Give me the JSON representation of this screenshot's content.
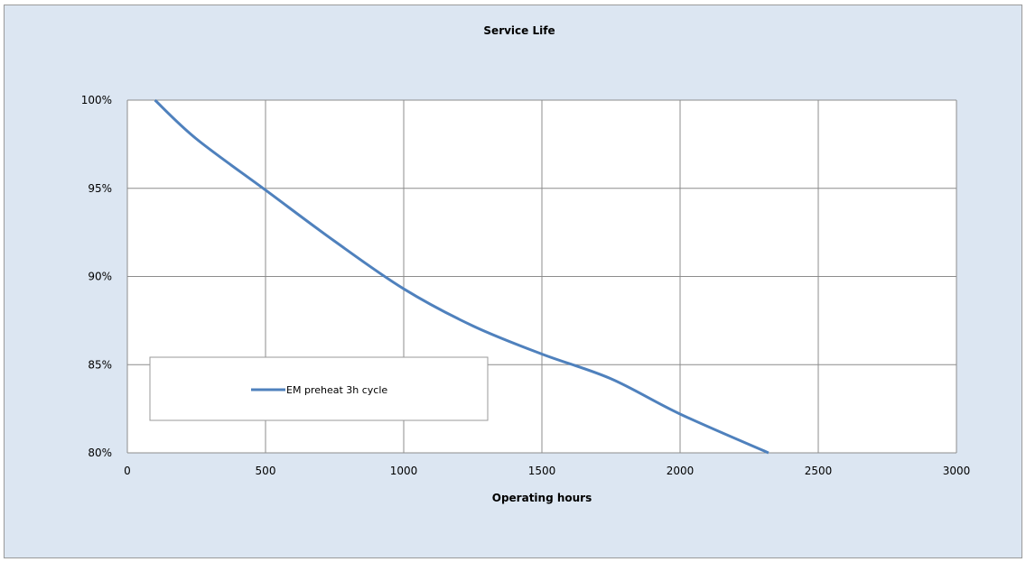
{
  "chart_data": {
    "type": "line",
    "title": "Service Life",
    "xlabel": "Operating hours",
    "ylabel": "",
    "xlim": [
      0,
      3000
    ],
    "ylim": [
      80,
      100
    ],
    "x_ticks": [
      0,
      500,
      1000,
      1500,
      2000,
      2500,
      3000
    ],
    "y_ticks": [
      80,
      85,
      90,
      95,
      100
    ],
    "y_tick_labels": [
      "80%",
      "85%",
      "90%",
      "95%",
      "100%"
    ],
    "grid": true,
    "legend_position": "left-bottom",
    "series": [
      {
        "name": "EM preheat 3h cycle",
        "color": "#4f81bd",
        "x": [
          100,
          250,
          500,
          750,
          1000,
          1250,
          1500,
          1750,
          2000,
          2320
        ],
        "y": [
          100,
          97.8,
          94.9,
          92.0,
          89.3,
          87.2,
          85.6,
          84.2,
          82.2,
          80.0
        ]
      }
    ]
  }
}
